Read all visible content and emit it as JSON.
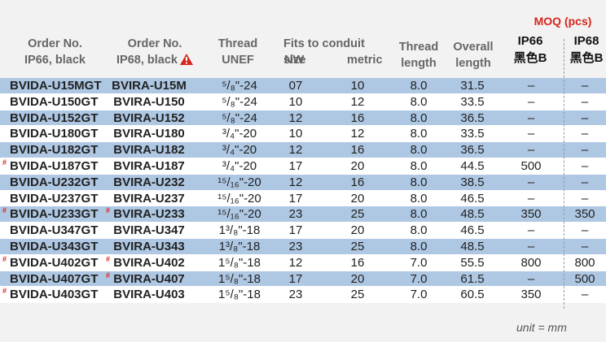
{
  "headers": {
    "ip66": [
      "Order No.",
      "IP66, black"
    ],
    "ip68": [
      "Order No.",
      "IP68, black"
    ],
    "thread": [
      "Thread",
      "UNEF"
    ],
    "fits": "Fits to conduit size",
    "nw": "NW",
    "metric": "metric",
    "thread_length": [
      "Thread",
      "length"
    ],
    "overall_length": [
      "Overall",
      "length"
    ],
    "moq": "MOQ (pcs)",
    "moq_ip66": [
      "IP66",
      "黑色B"
    ],
    "moq_ip68": [
      "IP68",
      "黑色B"
    ]
  },
  "rows": [
    {
      "ip66": "BVIDA-U15MGT",
      "ip66_mark": "",
      "ip68": "BVIRA-U15M",
      "ip68_mark": "",
      "thread": "⁵/₈\"-24",
      "nw": "07",
      "metric": "10",
      "tl": "8.0",
      "ol": "31.5",
      "moq66": "–",
      "moq68": "–"
    },
    {
      "ip66": "BVIDA-U150GT",
      "ip66_mark": "",
      "ip68": "BVIRA-U150",
      "ip68_mark": "",
      "thread": "⁵/₈\"-24",
      "nw": "10",
      "metric": "12",
      "tl": "8.0",
      "ol": "33.5",
      "moq66": "–",
      "moq68": "–"
    },
    {
      "ip66": "BVIDA-U152GT",
      "ip66_mark": "",
      "ip68": "BVIRA-U152",
      "ip68_mark": "",
      "thread": "⁵/₈\"-24",
      "nw": "12",
      "metric": "16",
      "tl": "8.0",
      "ol": "36.5",
      "moq66": "–",
      "moq68": "–"
    },
    {
      "ip66": "BVIDA-U180GT",
      "ip66_mark": "",
      "ip68": "BVIRA-U180",
      "ip68_mark": "",
      "thread": "³/₄\"-20",
      "nw": "10",
      "metric": "12",
      "tl": "8.0",
      "ol": "33.5",
      "moq66": "–",
      "moq68": "–"
    },
    {
      "ip66": "BVIDA-U182GT",
      "ip66_mark": "",
      "ip68": "BVIRA-U182",
      "ip68_mark": "",
      "thread": "³/₄\"-20",
      "nw": "12",
      "metric": "16",
      "tl": "8.0",
      "ol": "36.5",
      "moq66": "–",
      "moq68": "–"
    },
    {
      "ip66": "BVIDA-U187GT",
      "ip66_mark": "#",
      "ip68": "BVIRA-U187",
      "ip68_mark": "",
      "thread": "³/₄\"-20",
      "nw": "17",
      "metric": "20",
      "tl": "8.0",
      "ol": "44.5",
      "moq66": "500",
      "moq68": "–"
    },
    {
      "ip66": "BVIDA-U232GT",
      "ip66_mark": "",
      "ip68": "BVIRA-U232",
      "ip68_mark": "",
      "thread": "¹⁵/₁₆\"-20",
      "nw": "12",
      "metric": "16",
      "tl": "8.0",
      "ol": "38.5",
      "moq66": "–",
      "moq68": "–"
    },
    {
      "ip66": "BVIDA-U237GT",
      "ip66_mark": "",
      "ip68": "BVIRA-U237",
      "ip68_mark": "",
      "thread": "¹⁵/₁₆\"-20",
      "nw": "17",
      "metric": "20",
      "tl": "8.0",
      "ol": "46.5",
      "moq66": "–",
      "moq68": "–"
    },
    {
      "ip66": "BVIDA-U233GT",
      "ip66_mark": "#",
      "ip68": "BVIRA-U233",
      "ip68_mark": "#",
      "thread": "¹⁵/₁₆\"-20",
      "nw": "23",
      "metric": "25",
      "tl": "8.0",
      "ol": "48.5",
      "moq66": "350",
      "moq68": "350"
    },
    {
      "ip66": "BVIDA-U347GT",
      "ip66_mark": "",
      "ip68": "BVIRA-U347",
      "ip68_mark": "",
      "thread": "1³/₈\"-18",
      "nw": "17",
      "metric": "20",
      "tl": "8.0",
      "ol": "46.5",
      "moq66": "–",
      "moq68": "–"
    },
    {
      "ip66": "BVIDA-U343GT",
      "ip66_mark": "",
      "ip68": "BVIRA-U343",
      "ip68_mark": "",
      "thread": "1³/₈\"-18",
      "nw": "23",
      "metric": "25",
      "tl": "8.0",
      "ol": "48.5",
      "moq66": "–",
      "moq68": "–"
    },
    {
      "ip66": "BVIDA-U402GT",
      "ip66_mark": "#",
      "ip68": "BVIRA-U402",
      "ip68_mark": "#",
      "thread": "1⁵/₈\"-18",
      "nw": "12",
      "metric": "16",
      "tl": "7.0",
      "ol": "55.5",
      "moq66": "800",
      "moq68": "800"
    },
    {
      "ip66": "BVIDA-U407GT",
      "ip66_mark": "",
      "ip68": "BVIRA-U407",
      "ip68_mark": "#",
      "thread": "1⁵/₈\"-18",
      "nw": "17",
      "metric": "20",
      "tl": "7.0",
      "ol": "61.5",
      "moq66": "–",
      "moq68": "500"
    },
    {
      "ip66": "BVIDA-U403GT",
      "ip66_mark": "#",
      "ip68": "BVIRA-U403",
      "ip68_mark": "",
      "thread": "1⁵/₈\"-18",
      "nw": "23",
      "metric": "25",
      "tl": "7.0",
      "ol": "60.5",
      "moq66": "350",
      "moq68": "–"
    }
  ],
  "unit_note": "unit = mm",
  "colors": {
    "row_band": "#aec7e3",
    "accent_red": "#d7261b",
    "header_gray": "#666666"
  }
}
